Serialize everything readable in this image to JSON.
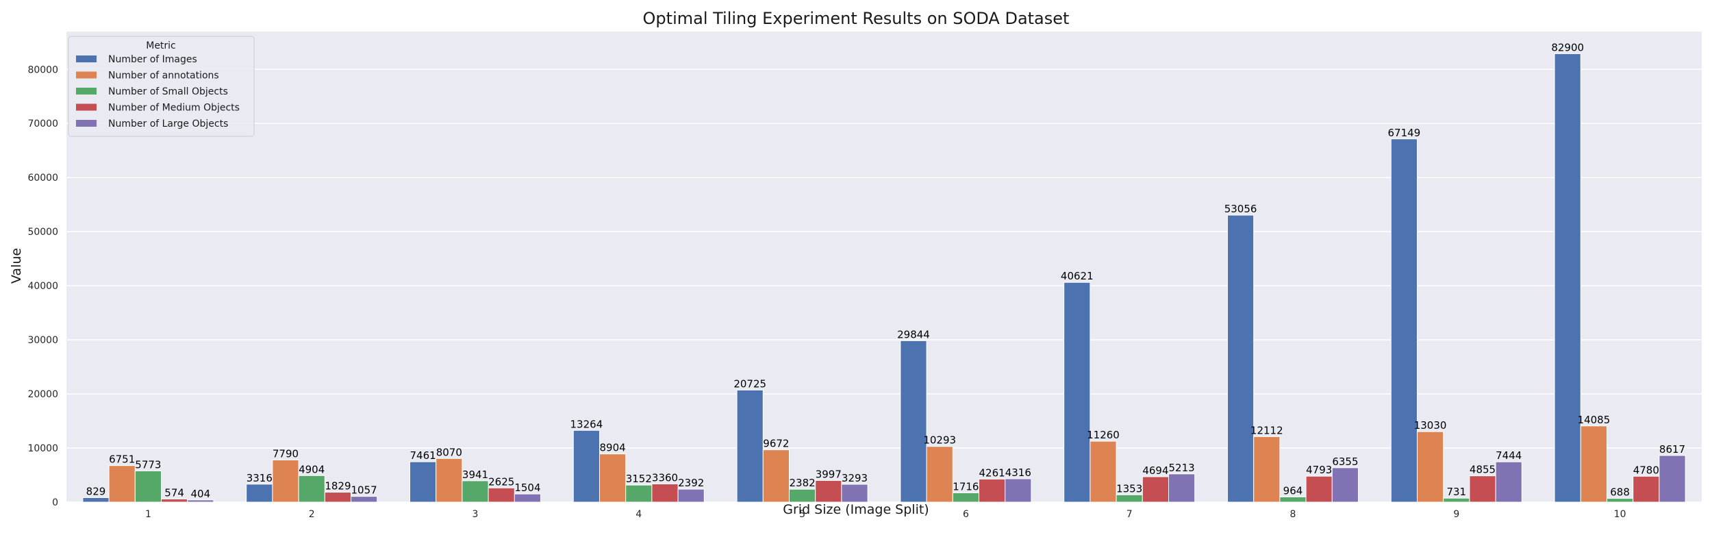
{
  "chart_data": {
    "type": "bar",
    "title": "Optimal Tiling Experiment Results on SODA Dataset",
    "xlabel": "Grid Size (Image Split)",
    "ylabel": "Value",
    "categories": [
      "1",
      "2",
      "3",
      "4",
      "5",
      "6",
      "7",
      "8",
      "9",
      "10"
    ],
    "ylim": [
      0,
      87000
    ],
    "yticks": [
      0,
      10000,
      20000,
      30000,
      40000,
      50000,
      60000,
      70000,
      80000
    ],
    "grid": true,
    "legend": {
      "title": "Metric",
      "placement": "top-left"
    },
    "colors": {
      "background": "#eaeaf2",
      "grid": "#ffffff"
    },
    "series": [
      {
        "name": "Number of Images",
        "color": "#4c72b0",
        "values": [
          829,
          3316,
          7461,
          13264,
          20725,
          29844,
          40621,
          53056,
          67149,
          82900
        ]
      },
      {
        "name": "Number of annotations",
        "color": "#dd8452",
        "values": [
          6751,
          7790,
          8070,
          8904,
          9672,
          10293,
          11260,
          12112,
          13030,
          14085
        ]
      },
      {
        "name": "Number of Small Objects",
        "color": "#55a868",
        "values": [
          5773,
          4904,
          3941,
          3152,
          2382,
          1716,
          1353,
          964,
          731,
          688
        ]
      },
      {
        "name": "Number of Medium Objects",
        "color": "#c44e52",
        "values": [
          574,
          1829,
          2625,
          3360,
          3997,
          4261,
          4694,
          4793,
          4855,
          4780
        ]
      },
      {
        "name": "Number of Large Objects",
        "color": "#8172b3",
        "values": [
          404,
          1057,
          1504,
          2392,
          3293,
          4316,
          5213,
          6355,
          7444,
          8617
        ]
      }
    ]
  }
}
